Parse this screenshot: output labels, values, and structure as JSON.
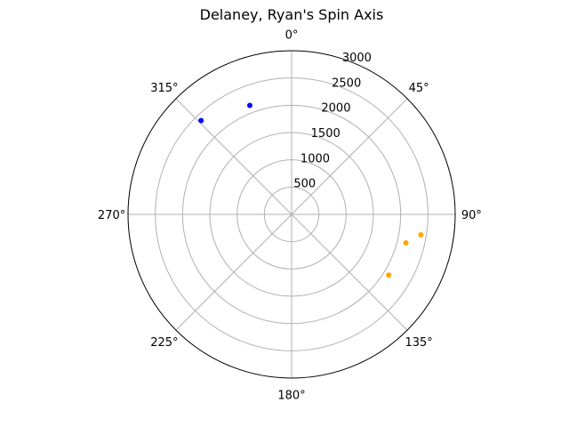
{
  "chart_data": {
    "type": "scatter",
    "projection": "polar",
    "title": "Delaney, Ryan's Spin Axis",
    "theta_direction": "clockwise",
    "theta_zero": "top",
    "rlim": [
      0,
      3000
    ],
    "r_ticks": [
      500,
      1000,
      1500,
      2000,
      2500,
      3000
    ],
    "theta_ticks": [
      0,
      45,
      90,
      135,
      180,
      225,
      270,
      315
    ],
    "theta_tick_labels": [
      "0°",
      "45°",
      "90°",
      "135°",
      "180°",
      "225°",
      "270°",
      "315°"
    ],
    "grid": true,
    "series": [
      {
        "color": "#0000ff",
        "points": [
          {
            "theta": 339,
            "r": 2140
          },
          {
            "theta": 316,
            "r": 2390
          }
        ]
      },
      {
        "color": "#ffa500",
        "points": [
          {
            "theta": 99,
            "r": 2400
          },
          {
            "theta": 104,
            "r": 2160
          },
          {
            "theta": 122,
            "r": 2100
          }
        ]
      }
    ]
  }
}
